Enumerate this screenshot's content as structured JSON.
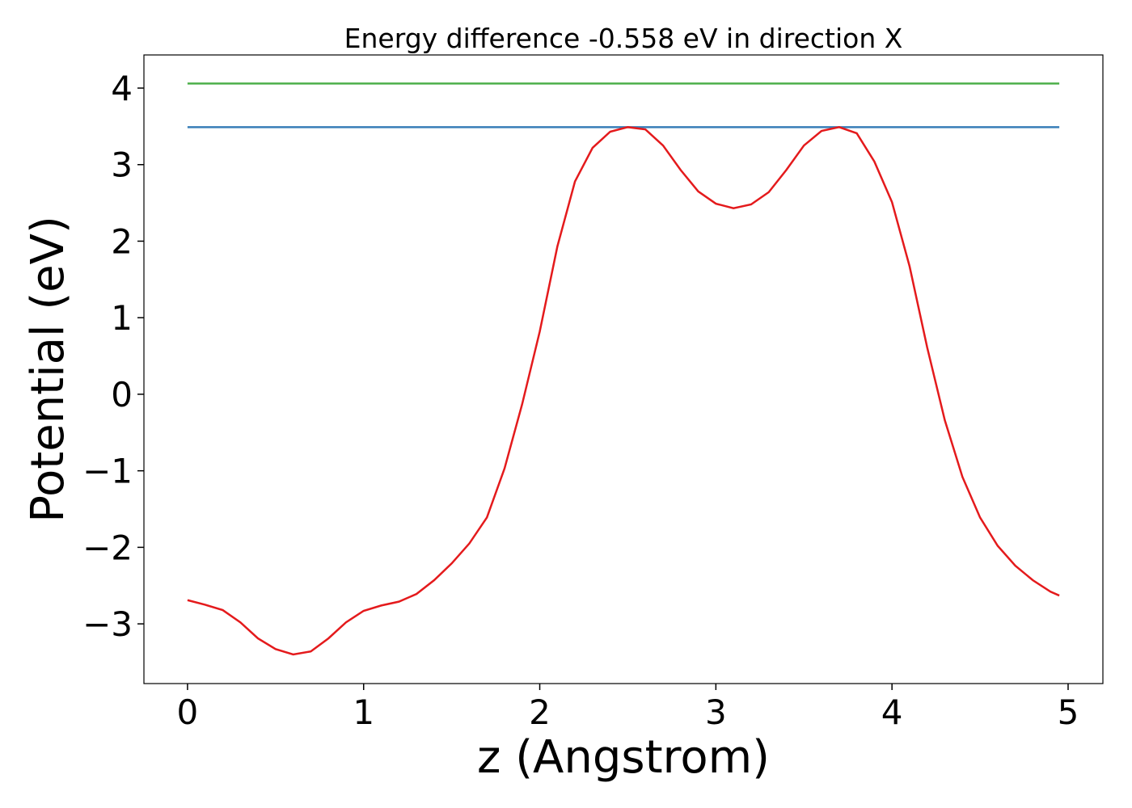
{
  "chart_data": {
    "type": "line",
    "title": "Energy difference -0.558 eV in direction X",
    "xlabel": "z (Angstrom)",
    "ylabel": "Potential (eV)",
    "xlim": [
      -0.2475,
      5.1975
    ],
    "ylim": [
      -3.78,
      4.433
    ],
    "xticks": [
      0,
      1,
      2,
      3,
      4,
      5
    ],
    "yticks": [
      {
        "value": -3,
        "label": "−3"
      },
      {
        "value": -2,
        "label": "−2"
      },
      {
        "value": -1,
        "label": "−1"
      },
      0,
      1,
      2,
      3,
      4
    ],
    "grid": false,
    "series": [
      {
        "color": "#4daf4a",
        "x": [
          0,
          4.95
        ],
        "values": [
          4.06,
          4.06
        ]
      },
      {
        "color": "#377eb8",
        "x": [
          0,
          4.95
        ],
        "values": [
          3.49,
          3.49
        ]
      },
      {
        "color": "#e41a1c",
        "x": [
          0,
          0.1,
          0.2,
          0.3,
          0.4,
          0.5,
          0.6,
          0.7,
          0.8,
          0.9,
          1.0,
          1.1,
          1.2,
          1.3,
          1.4,
          1.5,
          1.6,
          1.7,
          1.8,
          1.9,
          2.0,
          2.1,
          2.2,
          2.3,
          2.4,
          2.5,
          2.6,
          2.7,
          2.8,
          2.9,
          3.0,
          3.1,
          3.2,
          3.3,
          3.4,
          3.5,
          3.6,
          3.7,
          3.8,
          3.9,
          4.0,
          4.1,
          4.2,
          4.3,
          4.4,
          4.5,
          4.6,
          4.7,
          4.8,
          4.9,
          4.95
        ],
        "values": [
          -2.69,
          -2.75,
          -2.82,
          -2.98,
          -3.19,
          -3.33,
          -3.4,
          -3.36,
          -3.19,
          -2.98,
          -2.83,
          -2.76,
          -2.71,
          -2.61,
          -2.43,
          -2.21,
          -1.95,
          -1.61,
          -0.97,
          -0.13,
          0.82,
          1.93,
          2.78,
          3.22,
          3.43,
          3.49,
          3.46,
          3.25,
          2.93,
          2.65,
          2.49,
          2.43,
          2.48,
          2.64,
          2.93,
          3.25,
          3.44,
          3.49,
          3.41,
          3.04,
          2.51,
          1.67,
          0.61,
          -0.34,
          -1.08,
          -1.61,
          -1.98,
          -2.24,
          -2.43,
          -2.58,
          -2.63
        ]
      }
    ]
  }
}
